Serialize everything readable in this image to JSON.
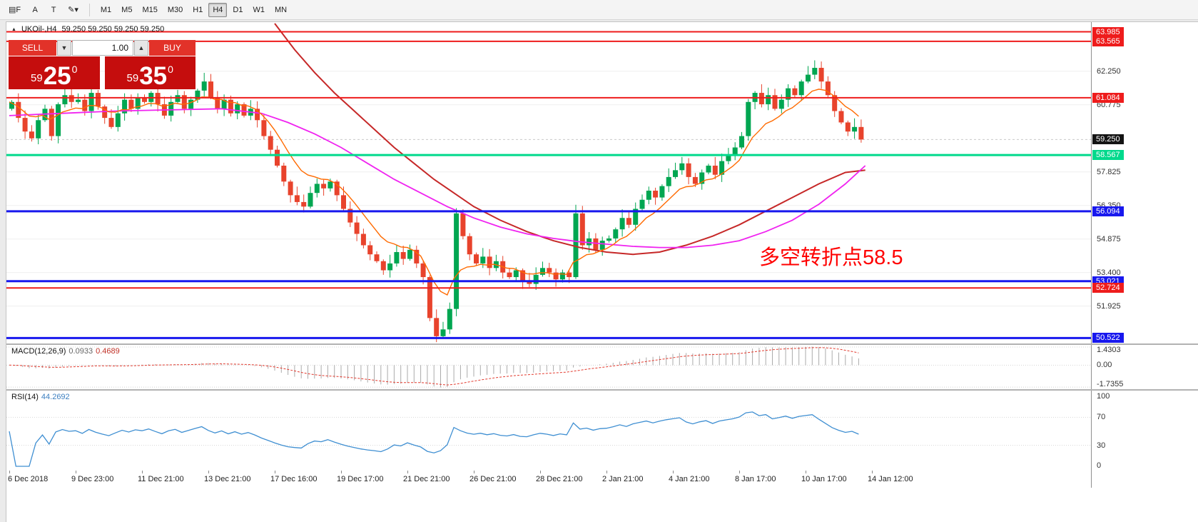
{
  "toolbar": {
    "icons": [
      {
        "name": "chart-templates-icon",
        "glyph": "▤F"
      },
      {
        "name": "font-tool-icon",
        "glyph": "A"
      },
      {
        "name": "text-tool-icon",
        "glyph": "T"
      },
      {
        "name": "color-tool-icon",
        "glyph": "✎▾"
      }
    ],
    "timeframes": [
      "M1",
      "M5",
      "M15",
      "M30",
      "H1",
      "H4",
      "D1",
      "W1",
      "MN"
    ],
    "active_timeframe": "H4"
  },
  "chart": {
    "symbol": "UKOil-,H4",
    "ohlc": "59.250 59.250 59.250 59.250",
    "annotation": {
      "text": "多空转折点58.5",
      "color": "#ff0000"
    },
    "current_price": {
      "label": "59.250",
      "price": 59.25,
      "color": "#141414"
    },
    "price_axis": {
      "ticks": [
        {
          "label": "62.250",
          "price": 62.25
        },
        {
          "label": "60.775",
          "price": 60.775
        },
        {
          "label": "57.825",
          "price": 57.825
        },
        {
          "label": "56.350",
          "price": 56.35
        },
        {
          "label": "54.875",
          "price": 54.875
        },
        {
          "label": "53.400",
          "price": 53.4
        },
        {
          "label": "51.925",
          "price": 51.925
        }
      ]
    },
    "levels": [
      {
        "price": 63.985,
        "label": "63.985",
        "color": "#ee1c1c",
        "width": 2
      },
      {
        "price": 63.565,
        "label": "63.565",
        "color": "#ee1c1c",
        "width": 2
      },
      {
        "price": 61.084,
        "label": "61.084",
        "color": "#ee1c1c",
        "width": 2
      },
      {
        "price": 58.567,
        "label": "58.567",
        "color": "#00d98c",
        "width": 3
      },
      {
        "price": 56.094,
        "label": "56.094",
        "color": "#1818ee",
        "width": 3
      },
      {
        "price": 53.021,
        "label": "53.021",
        "color": "#1818ee",
        "width": 3
      },
      {
        "price": 52.724,
        "label": "52.724",
        "color": "#ee1c1c",
        "width": 2
      },
      {
        "price": 50.522,
        "label": "50.522",
        "color": "#1818ee",
        "width": 3
      }
    ],
    "time_labels": [
      "6 Dec 2018",
      "9 Dec 23:00",
      "11 Dec 21:00",
      "13 Dec 21:00",
      "17 Dec 16:00",
      "19 Dec 17:00",
      "21 Dec 21:00",
      "26 Dec 21:00",
      "28 Dec 21:00",
      "2 Jan 21:00",
      "4 Jan 21:00",
      "8 Jan 17:00",
      "10 Jan 17:00",
      "14 Jan 12:00"
    ]
  },
  "trade_panel": {
    "sell_label": "SELL",
    "buy_label": "BUY",
    "volume": "1.00",
    "sell_small": "59",
    "sell_big": "25",
    "sell_sup": "0",
    "buy_small": "59",
    "buy_big": "35",
    "buy_sup": "0"
  },
  "macd": {
    "name": "MACD(12,26,9)",
    "main_value": "0.0933",
    "signal_value": "0.4689",
    "axis": [
      {
        "label": "1.4303",
        "value": 1.4303
      },
      {
        "label": "0.00",
        "value": 0
      },
      {
        "label": "-1.7355",
        "value": -1.7355
      }
    ]
  },
  "rsi": {
    "name": "RSI(14)",
    "value": "44.2692",
    "axis": [
      {
        "label": "100",
        "value": 100
      },
      {
        "label": "70",
        "value": 70
      },
      {
        "label": "30",
        "value": 30
      },
      {
        "label": "0",
        "value": 0
      }
    ],
    "levels": [
      70,
      30
    ]
  },
  "chart_data": {
    "type": "candlestick",
    "symbol": "UKOil-",
    "timeframe": "H4",
    "visible_price_range": [
      50.3,
      64.4
    ],
    "up_color": "#00A651",
    "down_color": "#E8432C",
    "first_open": 60.6,
    "closes": [
      60.9,
      60.2,
      59.6,
      59.3,
      60.1,
      60.6,
      59.4,
      60.8,
      61.2,
      60.9,
      61.0,
      60.5,
      61.3,
      60.7,
      60.2,
      59.8,
      60.4,
      61.0,
      60.6,
      61.1,
      60.9,
      61.3,
      60.8,
      60.3,
      60.9,
      61.2,
      60.6,
      61.0,
      61.4,
      61.8,
      61.1,
      60.6,
      61.0,
      60.4,
      60.8,
      60.3,
      60.6,
      60.1,
      59.4,
      58.8,
      58.1,
      57.4,
      56.8,
      56.5,
      56.3,
      56.9,
      57.3,
      57.1,
      57.4,
      56.8,
      56.2,
      55.6,
      55.1,
      54.6,
      54.2,
      53.9,
      53.5,
      53.8,
      54.3,
      54.0,
      54.4,
      53.8,
      53.2,
      51.4,
      50.6,
      50.9,
      51.8,
      56.0,
      55.0,
      54.2,
      53.8,
      54.1,
      53.6,
      53.9,
      53.4,
      53.2,
      53.5,
      53.0,
      52.9,
      53.3,
      53.6,
      53.4,
      53.1,
      53.4,
      53.2,
      56.0,
      54.6,
      54.9,
      54.4,
      54.8,
      54.9,
      55.3,
      55.8,
      55.5,
      56.2,
      56.6,
      57.0,
      56.7,
      57.2,
      57.6,
      57.9,
      58.2,
      57.6,
      57.3,
      57.8,
      58.1,
      57.7,
      58.3,
      58.6,
      58.9,
      59.4,
      60.9,
      61.3,
      60.8,
      61.2,
      60.6,
      61.0,
      61.5,
      61.2,
      61.8,
      62.1,
      62.4,
      61.8,
      61.2,
      60.5,
      60.0,
      59.6,
      59.8,
      59.25
    ],
    "ma_fast": {
      "color": "#ff6a00",
      "period": 9
    },
    "ma_mid": {
      "color": "#f023f0",
      "points": [
        [
          0,
          60.3
        ],
        [
          8,
          60.4
        ],
        [
          16,
          60.5
        ],
        [
          24,
          60.55
        ],
        [
          32,
          60.6
        ],
        [
          38,
          60.4
        ],
        [
          42,
          60.0
        ],
        [
          46,
          59.5
        ],
        [
          50,
          58.9
        ],
        [
          54,
          58.2
        ],
        [
          58,
          57.5
        ],
        [
          62,
          56.9
        ],
        [
          66,
          56.3
        ],
        [
          70,
          55.8
        ],
        [
          74,
          55.4
        ],
        [
          78,
          55.1
        ],
        [
          82,
          54.9
        ],
        [
          86,
          54.75
        ],
        [
          90,
          54.65
        ],
        [
          94,
          54.55
        ],
        [
          98,
          54.5
        ],
        [
          102,
          54.5
        ],
        [
          106,
          54.6
        ],
        [
          110,
          54.8
        ],
        [
          114,
          55.2
        ],
        [
          118,
          55.7
        ],
        [
          122,
          56.4
        ],
        [
          126,
          57.3
        ],
        [
          129,
          58.1
        ]
      ]
    },
    "ma_slow": {
      "color": "#c62828",
      "points": [
        [
          40,
          64.35
        ],
        [
          43,
          63.2
        ],
        [
          46,
          62.2
        ],
        [
          49,
          61.3
        ],
        [
          52,
          60.5
        ],
        [
          55,
          59.7
        ],
        [
          58,
          58.9
        ],
        [
          61,
          58.2
        ],
        [
          64,
          57.5
        ],
        [
          67,
          56.9
        ],
        [
          70,
          56.3
        ],
        [
          74,
          55.7
        ],
        [
          78,
          55.2
        ],
        [
          82,
          54.8
        ],
        [
          86,
          54.5
        ],
        [
          90,
          54.3
        ],
        [
          94,
          54.2
        ],
        [
          98,
          54.3
        ],
        [
          102,
          54.6
        ],
        [
          106,
          55.0
        ],
        [
          110,
          55.5
        ],
        [
          114,
          56.1
        ],
        [
          118,
          56.7
        ],
        [
          122,
          57.3
        ],
        [
          126,
          57.8
        ],
        [
          129,
          57.9
        ]
      ]
    }
  }
}
